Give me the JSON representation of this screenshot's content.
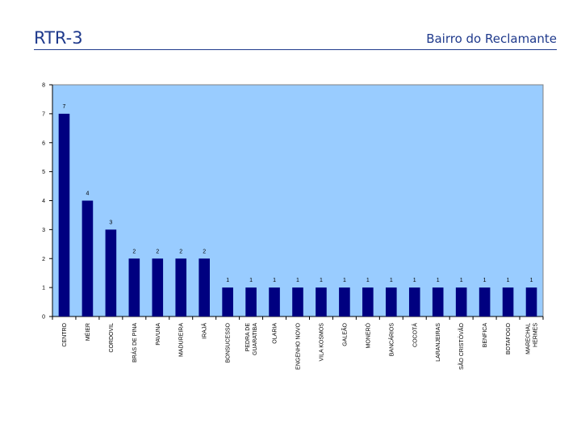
{
  "header": {
    "title": "RTR-3",
    "subtitle": "Bairro do Reclamante"
  },
  "colors": {
    "plot_bg": "#99ccff",
    "bar": "#000080",
    "title": "#1f3a8c"
  },
  "chart_data": {
    "type": "bar",
    "title": "",
    "xlabel": "",
    "ylabel": "",
    "ylim": [
      0,
      8
    ],
    "yticks": [
      0,
      1,
      2,
      3,
      4,
      5,
      6,
      7,
      8
    ],
    "grid": false,
    "legend": "none",
    "categories": [
      "CENTRO",
      "MÉIER",
      "CORDOVIL",
      "BRÁS DE PINA",
      "PAVUNA",
      "MADUREIRA",
      "IRAJÁ",
      "BONSUCESSO",
      "PEDRA DE GUARATIBA",
      "OLARIA",
      "ENGENHO NOVO",
      "VILA KOSMOS",
      "GALEÃO",
      "MONERÓ",
      "BANCÁRIOS",
      "COCOTÁ",
      "LARANJEIRAS",
      "SÃO CRISTÓVÃO",
      "BENFICA",
      "BOTAFOGO",
      "MARECHAL HERMES"
    ],
    "values": [
      7,
      4,
      3,
      2,
      2,
      2,
      2,
      1,
      1,
      1,
      1,
      1,
      1,
      1,
      1,
      1,
      1,
      1,
      1,
      1,
      1
    ]
  }
}
